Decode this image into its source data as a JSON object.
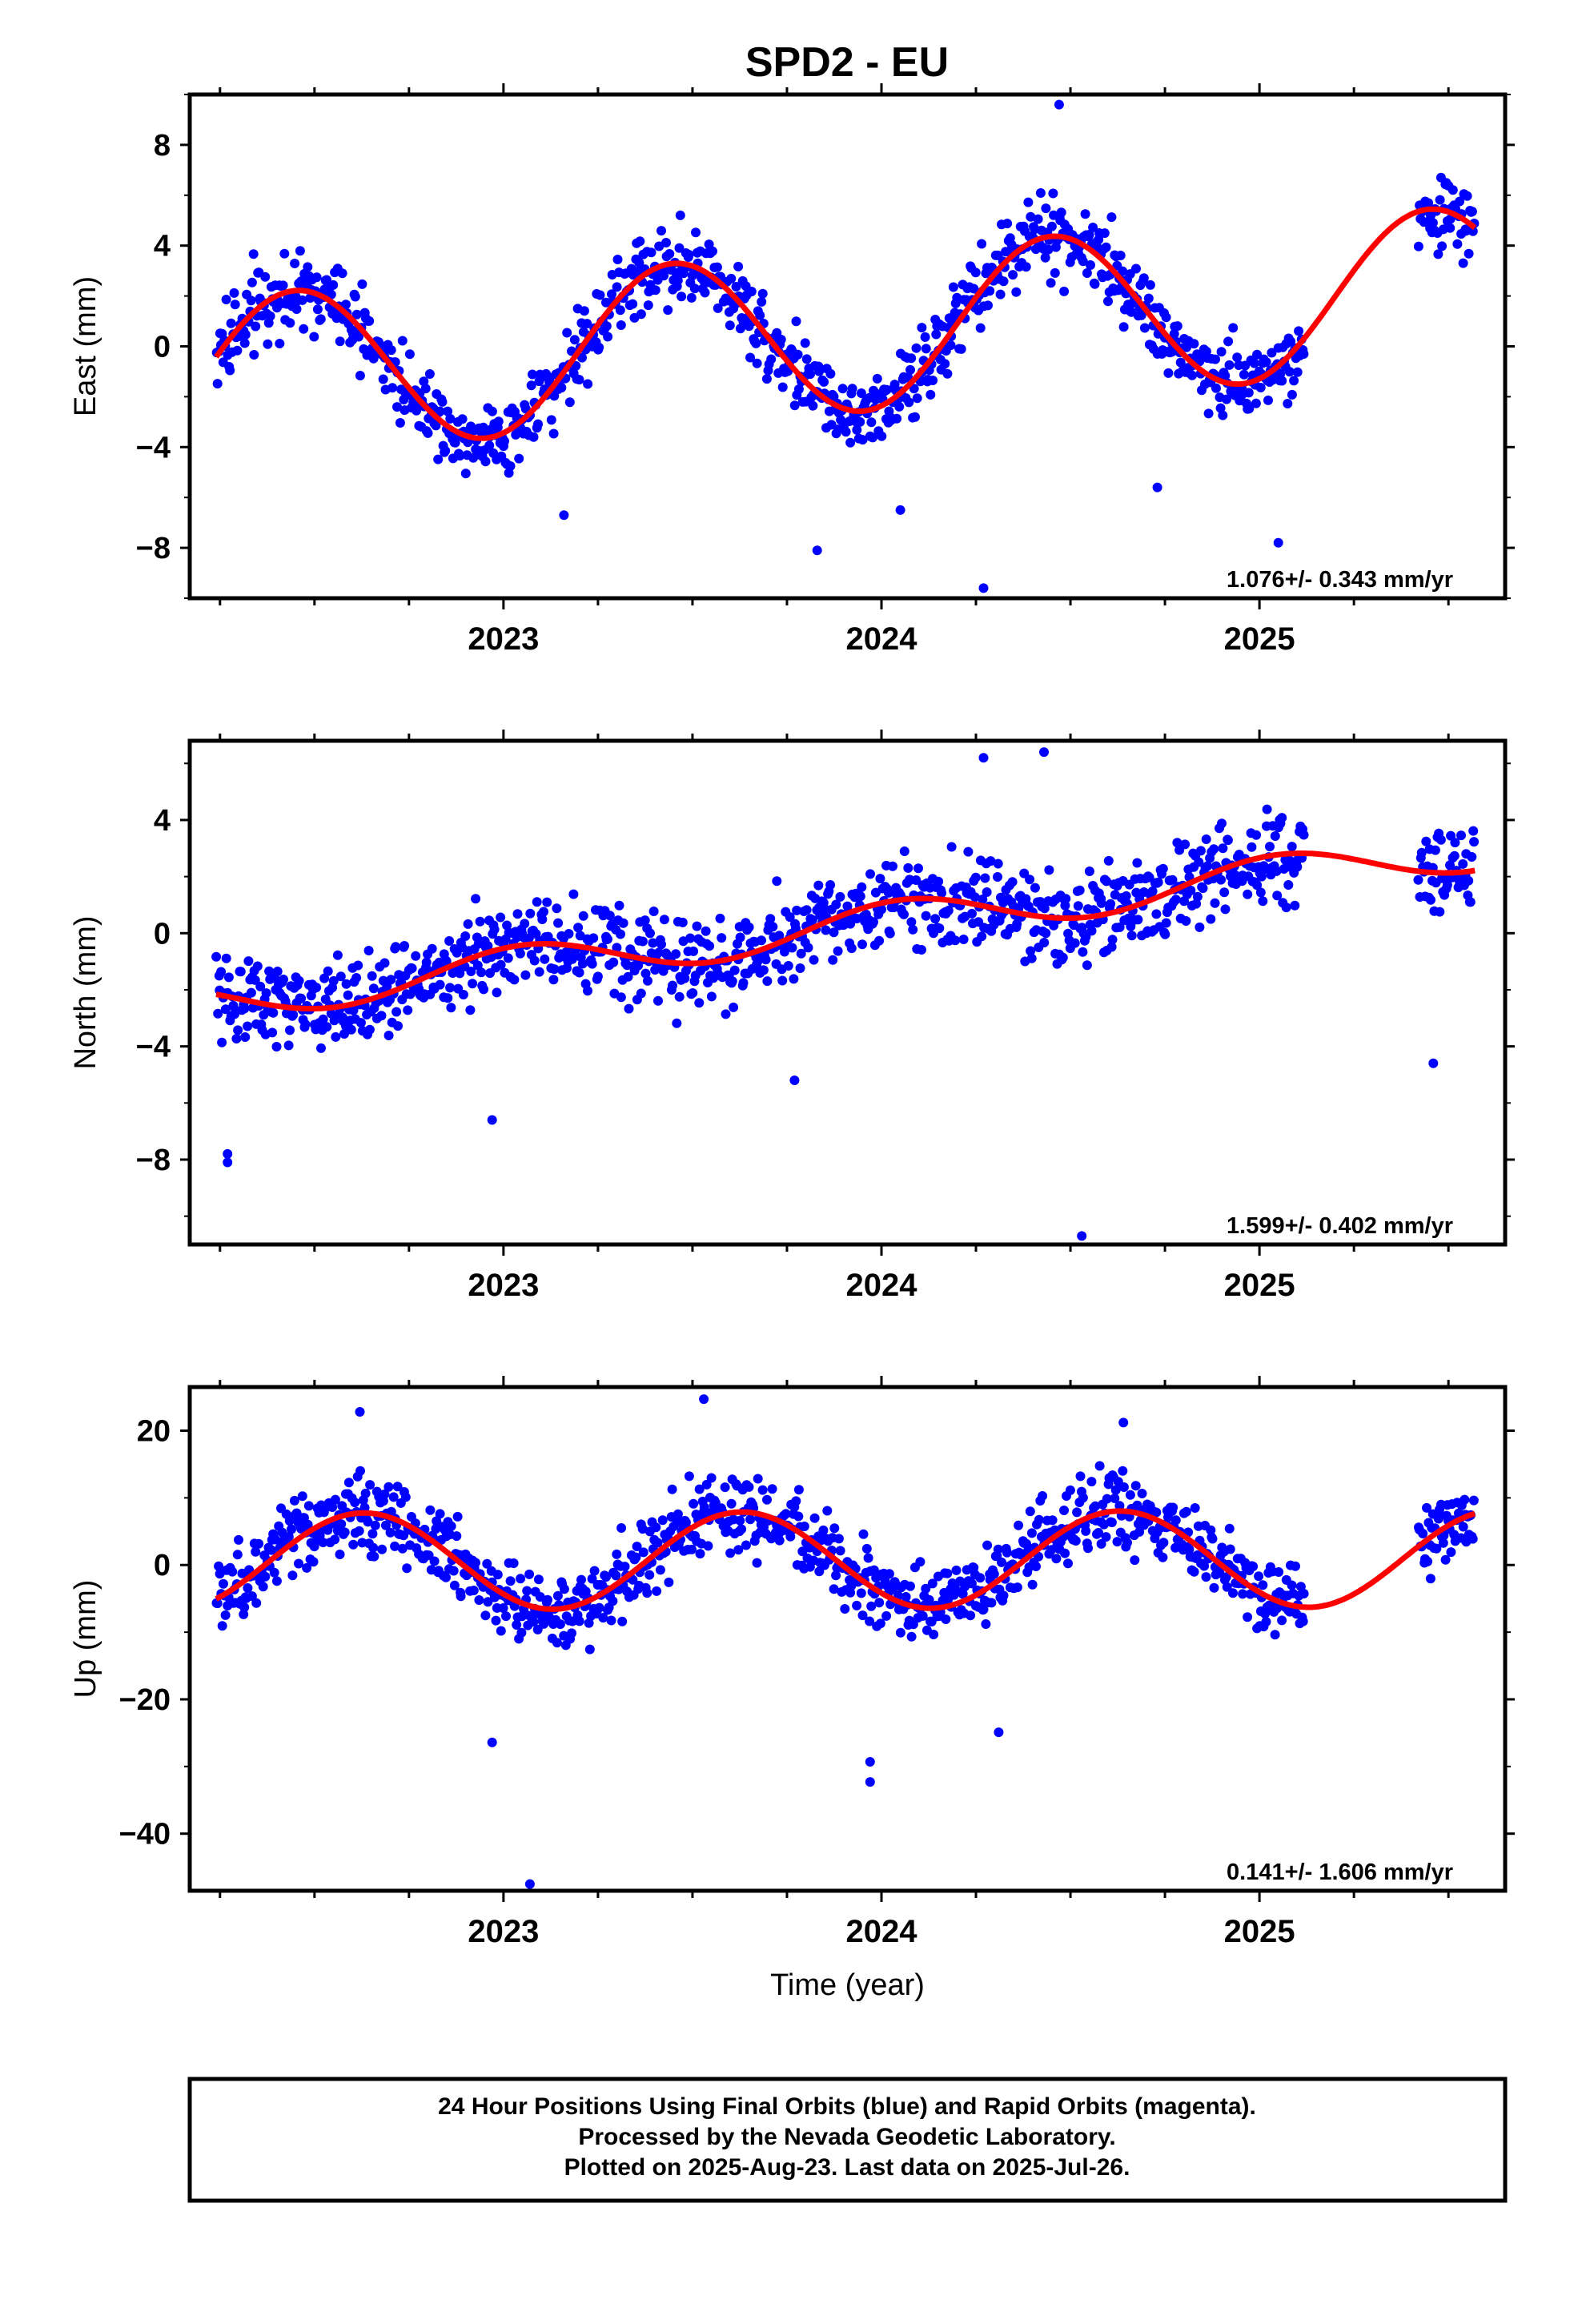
{
  "title": "SPD2 - EU",
  "footer": {
    "lines": [
      "24 Hour Positions Using Final Orbits (blue) and Rapid Orbits (magenta).",
      "Processed by the Nevada Geodetic Laboratory.",
      "Plotted on 2025-Aug-23. Last data on 2025-Jul-26."
    ]
  },
  "colors": {
    "points": "#0000ff",
    "fit": "#ff0000",
    "frame": "#000000"
  },
  "chart_data": [
    {
      "type": "scatter",
      "ylabel": "East (mm)",
      "xlabel": "",
      "xlim": [
        2022.17,
        2025.65
      ],
      "ylim": [
        -10.0,
        10.0
      ],
      "x_ticks": [
        2023,
        2024,
        2025
      ],
      "y_ticks": [
        -8,
        -4,
        0,
        4,
        8
      ],
      "rate_label": "1.076+/- 0.343 mm/yr",
      "fit_model": {
        "ref_year": 2022.25,
        "offset": -1.2,
        "rate": 1.076,
        "amplitude": 3.2,
        "peak_phase_year": 0.45
      },
      "observations": {
        "start": 2022.24,
        "end": 2025.57,
        "gap": [
          2025.12,
          2025.42
        ],
        "density_per_year": 340,
        "scatter_mm": 1.1,
        "outliers": [
          [
            2024.47,
            9.6
          ],
          [
            2024.27,
            -9.6
          ],
          [
            2023.16,
            -6.7
          ],
          [
            2023.83,
            -8.1
          ],
          [
            2024.05,
            -6.5
          ],
          [
            2024.73,
            -5.6
          ],
          [
            2025.05,
            -7.8
          ]
        ]
      },
      "grid": false
    },
    {
      "type": "scatter",
      "ylabel": "North (mm)",
      "xlabel": "",
      "xlim": [
        2022.17,
        2025.65
      ],
      "ylim": [
        -11.0,
        6.8
      ],
      "x_ticks": [
        2023,
        2024,
        2025
      ],
      "y_ticks": [
        -8,
        -4,
        0,
        4
      ],
      "rate_label": "1.599+/- 0.402 mm/yr",
      "fit_model": {
        "ref_year": 2022.25,
        "offset": -2.4,
        "rate": 1.599,
        "amplitude": 0.7,
        "peak_phase_year": 0.05
      },
      "observations": {
        "start": 2022.24,
        "end": 2025.57,
        "gap": [
          2025.12,
          2025.42
        ],
        "density_per_year": 340,
        "scatter_mm": 1.1,
        "outliers": [
          [
            2022.27,
            -8.1
          ],
          [
            2022.27,
            -7.8
          ],
          [
            2022.97,
            -6.6
          ],
          [
            2023.77,
            -5.2
          ],
          [
            2024.27,
            6.2
          ],
          [
            2024.43,
            6.4
          ],
          [
            2024.53,
            -10.7
          ],
          [
            2025.46,
            -4.6
          ]
        ]
      },
      "grid": false
    },
    {
      "type": "scatter",
      "ylabel": "Up (mm)",
      "xlabel": "Time (year)",
      "xlim": [
        2022.17,
        2025.65
      ],
      "ylim": [
        -48.5,
        26.5
      ],
      "x_ticks": [
        2023,
        2024,
        2025
      ],
      "y_ticks": [
        -40,
        -20,
        0,
        20
      ],
      "rate_label": "0.141+/- 1.606 mm/yr",
      "fit_model": {
        "ref_year": 2022.25,
        "offset": 0.5,
        "rate": 0.141,
        "amplitude": 7.2,
        "peak_phase_year": 0.63
      },
      "observations": {
        "start": 2022.24,
        "end": 2025.57,
        "gap": [
          2025.12,
          2025.42
        ],
        "density_per_year": 340,
        "scatter_mm": 4.0,
        "outliers": [
          [
            2023.07,
            -47.5
          ],
          [
            2023.97,
            -32.3
          ],
          [
            2023.97,
            -29.3
          ],
          [
            2022.97,
            -26.4
          ],
          [
            2023.53,
            24.7
          ],
          [
            2022.62,
            22.8
          ],
          [
            2024.31,
            -24.9
          ],
          [
            2024.64,
            21.2
          ]
        ]
      },
      "grid": false
    }
  ]
}
